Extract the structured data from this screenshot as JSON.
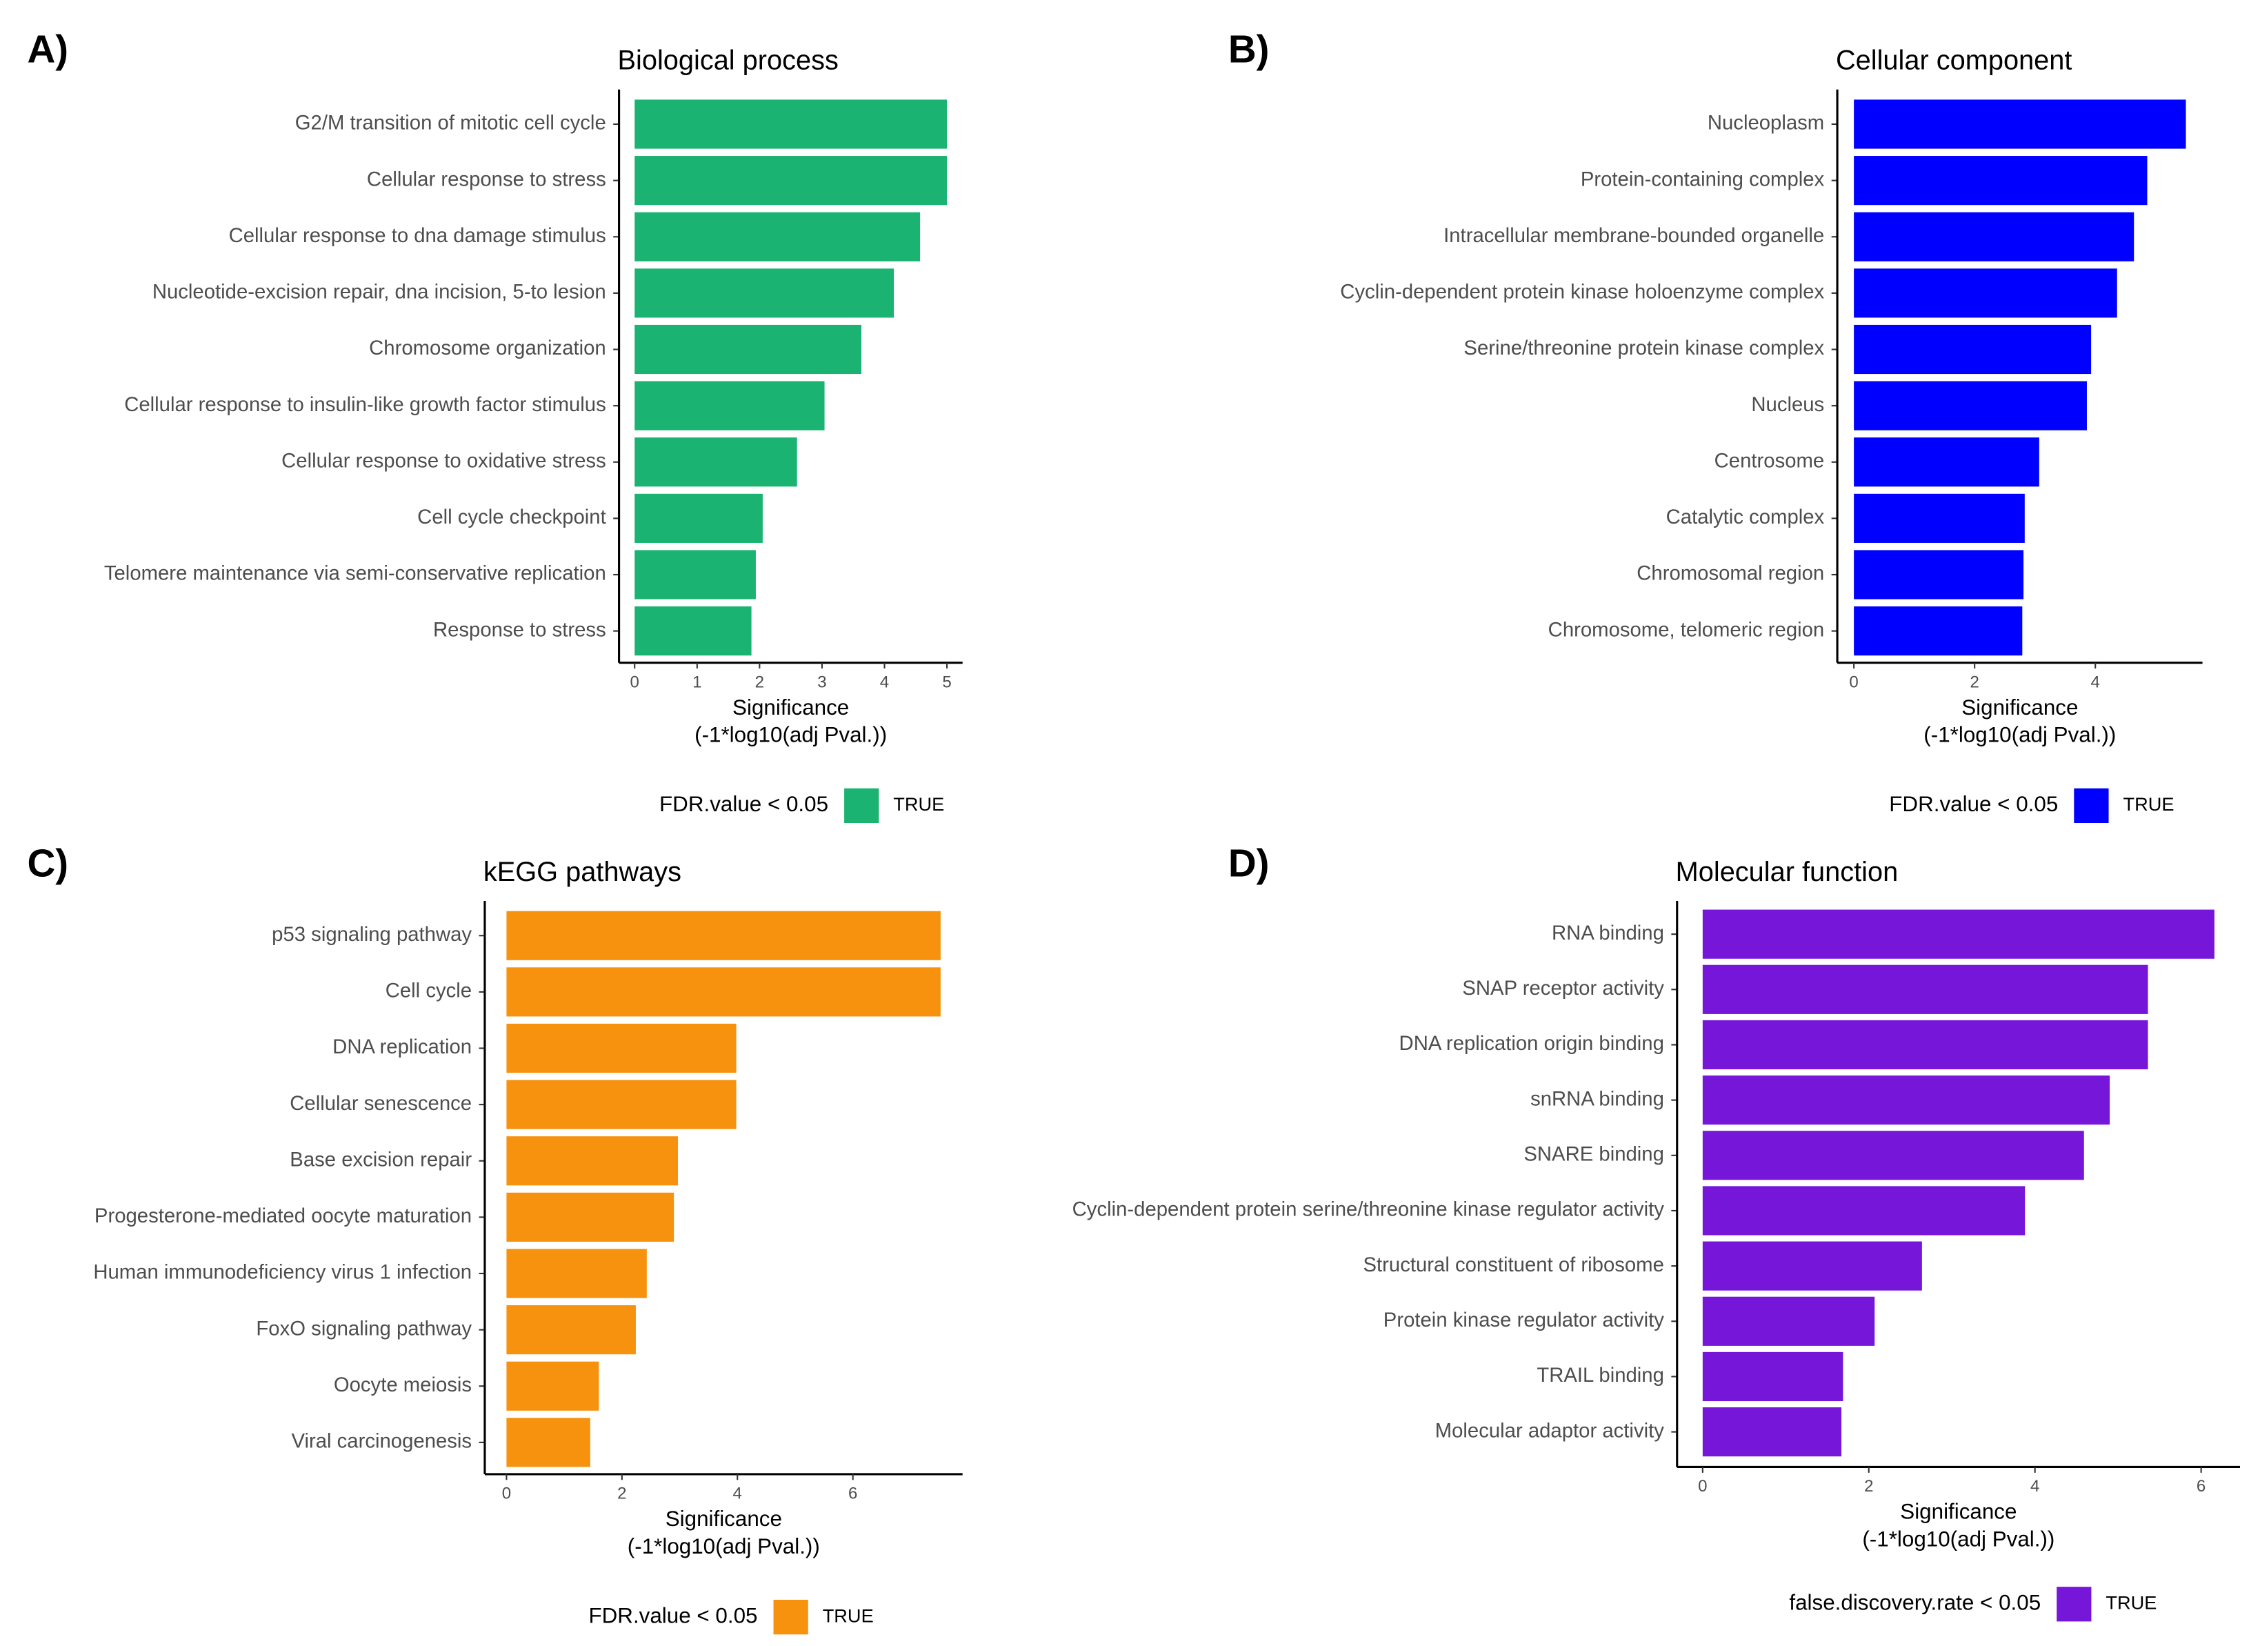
{
  "chart_data": [
    {
      "type": "bar",
      "panel": "A)",
      "title": "Biological process",
      "categories": [
        "G2/M transition of mitotic cell cycle",
        "Cellular response to stress",
        "Cellular response to dna damage stimulus",
        "Nucleotide-excision repair, dna incision, 5-to lesion",
        "Chromosome organization",
        "Cellular response to insulin-like growth factor stimulus",
        "Cellular response to oxidative stress",
        "Cell cycle checkpoint",
        "Telomere maintenance via semi-conservative replication",
        "Response to stress"
      ],
      "values": [
        5.0,
        5.0,
        4.57,
        4.15,
        3.63,
        3.04,
        2.6,
        2.05,
        1.94,
        1.87
      ],
      "color": "#1bb371",
      "xlim": [
        -0.25,
        5.25
      ],
      "xticks": [
        0,
        1,
        2,
        3,
        4,
        5
      ],
      "xlabel": [
        "Significance",
        "(-1*log10(adj Pval.))"
      ],
      "legend_title": "FDR.value < 0.05",
      "legend_label": "TRUE"
    },
    {
      "type": "bar",
      "panel": "B)",
      "title": "Cellular component",
      "categories": [
        "Nucleoplasm",
        "Protein-containing complex",
        "Intracellular membrane-bounded organelle",
        "Cyclin-dependent protein kinase holoenzyme complex",
        "Serine/threonine protein kinase complex",
        "Nucleus",
        "Centrosome",
        "Catalytic complex",
        "Chromosomal region",
        "Chromosome, telomeric region"
      ],
      "values": [
        5.5,
        4.86,
        4.64,
        4.36,
        3.93,
        3.86,
        3.07,
        2.83,
        2.81,
        2.79
      ],
      "color": "#0000ff",
      "xlim": [
        -0.275,
        5.775
      ],
      "xticks": [
        0,
        2,
        4
      ],
      "xlabel": [
        "Significance",
        "(-1*log10(adj Pval.))"
      ],
      "legend_title": "FDR.value < 0.05",
      "legend_label": "TRUE"
    },
    {
      "type": "bar",
      "panel": "C)",
      "title": "kEGG pathways",
      "categories": [
        "p53 signaling pathway",
        "Cell cycle",
        "DNA replication",
        "Cellular senescence",
        "Base excision repair",
        "Progesterone-mediated oocyte maturation",
        "Human immunodeficiency virus 1 infection",
        "FoxO signaling pathway",
        "Oocyte meiosis",
        "Viral carcinogenesis"
      ],
      "values": [
        7.52,
        7.52,
        3.98,
        3.98,
        2.97,
        2.9,
        2.43,
        2.24,
        1.6,
        1.45
      ],
      "color": "#f7920f",
      "xlim": [
        -0.376,
        7.9
      ],
      "xticks": [
        0,
        2,
        4,
        6
      ],
      "xlabel": [
        "Significance",
        "(-1*log10(adj Pval.))"
      ],
      "legend_title": "FDR.value < 0.05",
      "legend_label": "TRUE"
    },
    {
      "type": "bar",
      "panel": "D)",
      "title": "Molecular function",
      "categories": [
        "RNA binding",
        "SNAP receptor activity",
        "DNA replication origin binding",
        "snRNA binding",
        "SNARE binding",
        "Cyclin-dependent protein serine/threonine kinase regulator activity",
        "Structural constituent of ribosome",
        "Protein kinase regulator activity",
        "TRAIL binding",
        "Molecular adaptor activity"
      ],
      "values": [
        6.16,
        5.36,
        5.36,
        4.9,
        4.59,
        3.88,
        2.64,
        2.07,
        1.69,
        1.67
      ],
      "color": "#7516d8",
      "xlim": [
        -0.308,
        6.468
      ],
      "xticks": [
        0,
        2,
        4,
        6
      ],
      "xlabel": [
        "Significance",
        "(-1*log10(adj Pval.))"
      ],
      "legend_title": "false.discovery.rate < 0.05",
      "legend_label": "TRUE"
    }
  ]
}
